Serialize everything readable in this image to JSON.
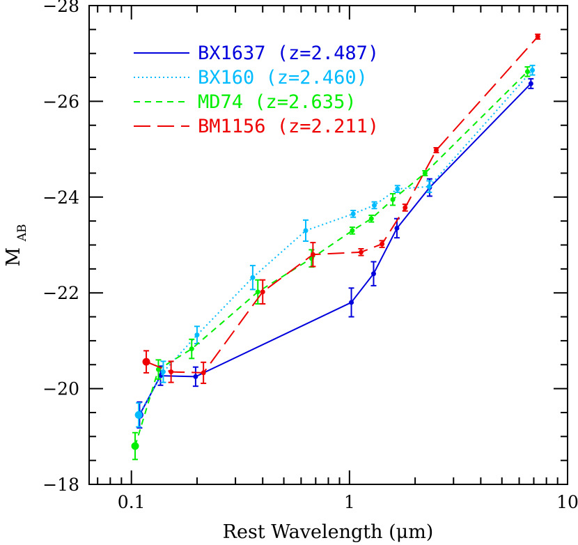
{
  "chart_data": {
    "type": "line",
    "title": "",
    "xlabel": "Rest Wavelength (μm)",
    "ylabel": "M",
    "ylabel_subscript": "AB",
    "x_scale": "log",
    "xlim": [
      0.064,
      10
    ],
    "ylim": [
      -28,
      -18
    ],
    "y_inverted": true,
    "x_tick_labels": [
      "0.1",
      "1",
      "10"
    ],
    "y_tick_labels": [
      "−28",
      "−26",
      "−24",
      "−22",
      "−20",
      "−18"
    ],
    "legend_position": "top-left",
    "grid": false,
    "series": [
      {
        "name": "BX1637 (z=2.487)",
        "color": "#0000dd",
        "line_style": "solid",
        "points": [
          {
            "x": 0.109,
            "y": -19.45,
            "err": 0.27
          },
          {
            "x": 0.136,
            "y": -20.27,
            "err": 0.2
          },
          {
            "x": 0.197,
            "y": -20.25,
            "err": 0.2
          },
          {
            "x": 1.02,
            "y": -21.8,
            "err": 0.3
          },
          {
            "x": 1.29,
            "y": -22.4,
            "err": 0.25
          },
          {
            "x": 1.65,
            "y": -23.35,
            "err": 0.2
          },
          {
            "x": 2.33,
            "y": -24.2,
            "err": 0.18
          },
          {
            "x": 6.79,
            "y": -26.37,
            "err": 0.1
          }
        ]
      },
      {
        "name": "BX160 (z=2.460)",
        "color": "#00bbff",
        "line_style": "dotted",
        "points": [
          {
            "x": 0.108,
            "y": -19.45,
            "err": 0.25
          },
          {
            "x": 0.14,
            "y": -20.35,
            "err": 0.22
          },
          {
            "x": 0.2,
            "y": -21.12,
            "err": 0.18
          },
          {
            "x": 0.36,
            "y": -22.32,
            "err": 0.25
          },
          {
            "x": 0.63,
            "y": -23.3,
            "err": 0.22
          },
          {
            "x": 1.04,
            "y": -23.65,
            "err": 0.07
          },
          {
            "x": 1.3,
            "y": -23.83,
            "err": 0.07
          },
          {
            "x": 1.66,
            "y": -24.17,
            "err": 0.07
          },
          {
            "x": 2.32,
            "y": -24.22,
            "err": 0.12
          },
          {
            "x": 6.9,
            "y": -26.65,
            "err": 0.1
          }
        ]
      },
      {
        "name": "MD74 (z=2.635)",
        "color": "#00ee00",
        "line_style": "dashed",
        "points": [
          {
            "x": 0.104,
            "y": -18.8,
            "err": 0.28
          },
          {
            "x": 0.133,
            "y": -20.4,
            "err": 0.2
          },
          {
            "x": 0.189,
            "y": -20.83,
            "err": 0.2
          },
          {
            "x": 0.38,
            "y": -22.02,
            "err": 0.25
          },
          {
            "x": 0.67,
            "y": -22.72,
            "err": 0.18
          },
          {
            "x": 1.03,
            "y": -23.3,
            "err": 0.07
          },
          {
            "x": 1.26,
            "y": -23.55,
            "err": 0.07
          },
          {
            "x": 1.58,
            "y": -23.95,
            "err": 0.12
          },
          {
            "x": 2.22,
            "y": -24.5,
            "err": 0.05
          },
          {
            "x": 6.55,
            "y": -26.62,
            "err": 0.1
          }
        ]
      },
      {
        "name": "BM1156 (z=2.211)",
        "color": "#ee0000",
        "line_style": "long-dashed",
        "points": [
          {
            "x": 0.117,
            "y": -20.56,
            "err": 0.23
          },
          {
            "x": 0.152,
            "y": -20.35,
            "err": 0.22
          },
          {
            "x": 0.214,
            "y": -20.33,
            "err": 0.22
          },
          {
            "x": 0.4,
            "y": -22.02,
            "err": 0.25
          },
          {
            "x": 0.68,
            "y": -22.8,
            "err": 0.25
          },
          {
            "x": 1.13,
            "y": -22.85,
            "err": 0.07
          },
          {
            "x": 1.41,
            "y": -23.02,
            "err": 0.07
          },
          {
            "x": 1.8,
            "y": -23.78,
            "err": 0.07
          },
          {
            "x": 2.5,
            "y": -24.98,
            "err": 0.05
          },
          {
            "x": 7.3,
            "y": -27.35,
            "err": 0.05
          }
        ]
      }
    ]
  }
}
